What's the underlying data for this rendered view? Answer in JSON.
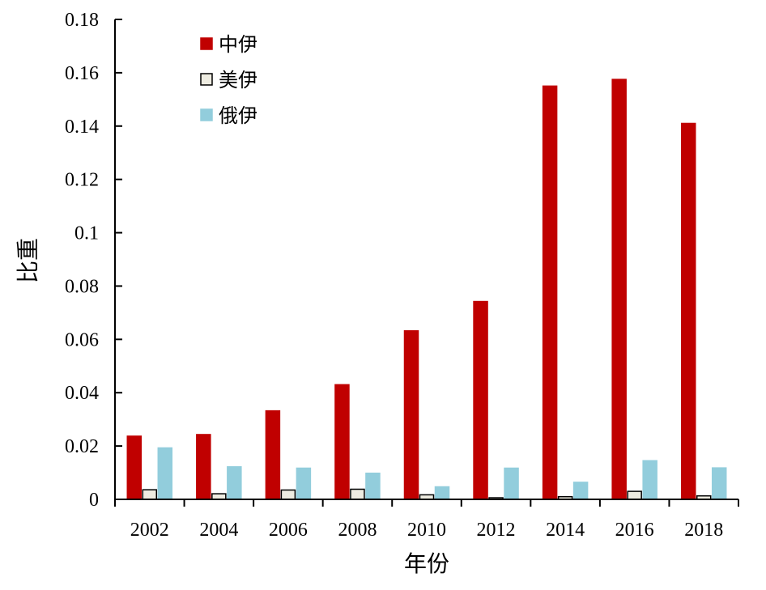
{
  "chart_data": {
    "type": "bar",
    "categories": [
      "2002",
      "2004",
      "2006",
      "2008",
      "2010",
      "2012",
      "2014",
      "2016",
      "2018"
    ],
    "series": [
      {
        "name": "中伊",
        "color": "#c00000",
        "stroke": "#c00000",
        "values": [
          0.0237,
          0.0243,
          0.0332,
          0.043,
          0.0632,
          0.0742,
          0.155,
          0.1575,
          0.141
        ]
      },
      {
        "name": "美伊",
        "color": "#eeece1",
        "stroke": "#000000",
        "values": [
          0.0036,
          0.0021,
          0.0035,
          0.0038,
          0.0017,
          0.0006,
          0.001,
          0.003,
          0.0013
        ]
      },
      {
        "name": "俄伊",
        "color": "#92cddc",
        "stroke": "#92cddc",
        "values": [
          0.0193,
          0.0122,
          0.0117,
          0.0098,
          0.0047,
          0.0117,
          0.0064,
          0.0145,
          0.0118
        ]
      }
    ],
    "yticks": [
      "0",
      "0.02",
      "0.04",
      "0.06",
      "0.08",
      "0.1",
      "0.12",
      "0.14",
      "0.16",
      "0.18"
    ],
    "ylim": [
      0,
      0.18
    ],
    "xlabel": "年份",
    "ylabel": "比重",
    "legend_position": "top-left",
    "grid": false
  }
}
